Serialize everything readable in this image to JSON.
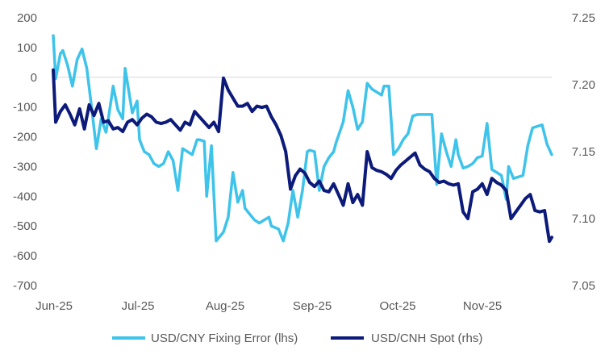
{
  "chart_data": {
    "type": "line",
    "title": "",
    "x_tick_labels": [
      "Jun-25",
      "Jul-25",
      "Aug-25",
      "Sep-25",
      "Oct-25",
      "Nov-25"
    ],
    "left_axis": {
      "label": "",
      "ylim": [
        -700,
        200
      ],
      "tick_labels": [
        "200",
        "100",
        "0",
        "-100",
        "-200",
        "-300",
        "-400",
        "-500",
        "-600",
        "-700"
      ]
    },
    "right_axis": {
      "label": "",
      "ylim": [
        7.05,
        7.25
      ],
      "tick_labels": [
        "7.25",
        "7.20",
        "7.15",
        "7.10",
        "7.05"
      ]
    },
    "series": [
      {
        "name": "USD/CNY Fixing Error (lhs)",
        "axis": "left",
        "color": "#3ec3ea",
        "x": [
          0,
          1,
          3,
          4,
          6,
          8,
          10,
          12,
          14,
          16,
          18,
          20,
          22,
          23,
          25,
          27,
          29,
          30,
          33,
          35,
          36,
          38,
          40,
          42,
          44,
          46,
          48,
          50,
          52,
          54,
          56,
          58,
          60,
          61,
          63,
          64,
          66,
          68,
          71,
          73,
          75,
          77,
          79,
          80,
          82,
          84,
          86,
          88,
          90,
          91,
          94,
          96,
          98,
          100,
          102,
          104,
          106,
          107,
          109,
          111,
          113,
          115,
          117,
          118,
          121,
          123,
          125,
          127,
          129,
          131,
          133,
          135,
          137,
          138,
          140,
          142,
          144,
          146,
          148,
          150,
          152,
          154,
          156,
          158,
          160,
          162,
          164,
          166,
          168,
          169,
          171,
          173,
          175,
          177,
          179,
          181,
          183,
          185,
          187,
          189,
          190,
          192,
          194,
          196,
          198,
          200,
          202,
          204,
          206,
          208
        ],
        "values": [
          140,
          -5,
          80,
          90,
          40,
          -30,
          60,
          95,
          30,
          -100,
          -240,
          -140,
          -185,
          -140,
          -30,
          -110,
          -140,
          30,
          -120,
          -80,
          -210,
          -250,
          -260,
          -290,
          -300,
          -290,
          -250,
          -280,
          -380,
          -240,
          -250,
          -260,
          -210,
          -210,
          -215,
          -400,
          -230,
          -550,
          -520,
          -470,
          -320,
          -420,
          -380,
          -440,
          -460,
          -480,
          -490,
          -480,
          -470,
          -500,
          -510,
          -550,
          -490,
          -380,
          -470,
          -380,
          -250,
          -245,
          -250,
          -380,
          -300,
          -270,
          -250,
          -220,
          -150,
          -45,
          -100,
          -175,
          -150,
          -20,
          -40,
          -50,
          -60,
          -30,
          -30,
          -260,
          -240,
          -210,
          -190,
          -130,
          -125,
          -125,
          -125,
          -125,
          -360,
          -190,
          -250,
          -300,
          -210,
          -260,
          -305,
          -300,
          -290,
          -270,
          -265,
          -155,
          -310,
          -320,
          -330,
          -410,
          -300,
          -340,
          -335,
          -330,
          -230,
          -170,
          -165,
          -160,
          -225,
          -260
        ],
        "values_note": "x is trading days from first observation"
      },
      {
        "name": "USD/CNH Spot (rhs)",
        "axis": "right",
        "color": "#0c1a7a",
        "x": [
          0,
          1,
          3,
          5,
          7,
          9,
          11,
          13,
          15,
          17,
          19,
          21,
          23,
          25,
          27,
          29,
          31,
          33,
          35,
          37,
          39,
          41,
          43,
          45,
          47,
          49,
          51,
          53,
          55,
          57,
          59,
          61,
          63,
          65,
          67,
          69,
          71,
          73,
          75,
          77,
          79,
          81,
          83,
          85,
          87,
          89,
          91,
          93,
          95,
          97,
          99,
          101,
          103,
          105,
          107,
          109,
          111,
          113,
          115,
          117,
          119,
          121,
          123,
          125,
          127,
          129,
          131,
          133,
          135,
          137,
          139,
          141,
          143,
          145,
          147,
          149,
          151,
          153,
          155,
          157,
          159,
          161,
          163,
          165,
          167,
          169,
          171,
          173,
          175,
          177,
          179,
          181,
          183,
          185,
          187,
          189,
          191,
          193,
          195,
          197,
          199,
          201,
          203,
          205,
          207,
          208
        ],
        "values": [
          7.211,
          7.172,
          7.18,
          7.185,
          7.178,
          7.17,
          7.182,
          7.167,
          7.185,
          7.177,
          7.186,
          7.172,
          7.173,
          7.167,
          7.168,
          7.165,
          7.172,
          7.174,
          7.17,
          7.175,
          7.178,
          7.176,
          7.172,
          7.171,
          7.172,
          7.174,
          7.17,
          7.166,
          7.172,
          7.17,
          7.18,
          7.176,
          7.172,
          7.168,
          7.172,
          7.165,
          7.205,
          7.196,
          7.19,
          7.184,
          7.184,
          7.186,
          7.18,
          7.184,
          7.183,
          7.184,
          7.176,
          7.17,
          7.162,
          7.15,
          7.122,
          7.132,
          7.137,
          7.134,
          7.127,
          7.124,
          7.128,
          7.121,
          7.12,
          7.126,
          7.118,
          7.11,
          7.126,
          7.112,
          7.118,
          7.11,
          7.15,
          7.138,
          7.136,
          7.135,
          7.133,
          7.13,
          7.136,
          7.14,
          7.143,
          7.146,
          7.149,
          7.14,
          7.137,
          7.135,
          7.13,
          7.127,
          7.128,
          7.126,
          7.125,
          7.126,
          7.105,
          7.1,
          7.12,
          7.122,
          7.126,
          7.118,
          7.13,
          7.127,
          7.125,
          7.121,
          7.1,
          7.105,
          7.11,
          7.115,
          7.118,
          7.106,
          7.105,
          7.106,
          7.083,
          7.086
        ],
        "values_note": "x is trading days from first observation"
      }
    ],
    "legend": "bottom",
    "grid": false
  }
}
